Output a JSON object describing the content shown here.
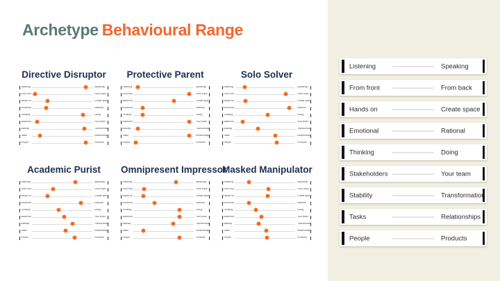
{
  "title": {
    "part1": "Archetype",
    "part2": "Behavioural Range"
  },
  "scales": [
    {
      "left": "Listening",
      "right": "Speaking"
    },
    {
      "left": "From front",
      "right": "From back"
    },
    {
      "left": "Hands on",
      "right": "Create space"
    },
    {
      "left": "Emotional",
      "right": "Rational"
    },
    {
      "left": "Thinking",
      "right": "Doing"
    },
    {
      "left": "Stakeholders",
      "right": "Your team"
    },
    {
      "left": "Stability",
      "right": "Transformation"
    },
    {
      "left": "Tasks",
      "right": "Relationships"
    },
    {
      "left": "People",
      "right": "Products"
    }
  ],
  "chart_data": {
    "type": "scatter",
    "note": "Each archetype chart plots one orange dot per behavioural scale; value = position along the left-right scale, 0 = left pole, 100 = right pole.",
    "categories": [
      "Listening-Speaking",
      "From front-From back",
      "Hands on-Create space",
      "Emotional-Rational",
      "Thinking-Doing",
      "Stakeholders-Your team",
      "Stability-Transformation",
      "Tasks-Relationships",
      "People-Products"
    ],
    "series": [
      {
        "name": "Directive Disruptor",
        "values": [
          89,
          5,
          26,
          23,
          84,
          9,
          87,
          13,
          89
        ]
      },
      {
        "name": "Protective Parent",
        "values": [
          7,
          93,
          67,
          15,
          15,
          93,
          7,
          92,
          4
        ]
      },
      {
        "name": "Solo Solver",
        "values": [
          17,
          84,
          18,
          90,
          55,
          13,
          38,
          67,
          70
        ]
      },
      {
        "name": "Academic Purist",
        "values": [
          72,
          35,
          26,
          81,
          44,
          54,
          67,
          56,
          71
        ]
      },
      {
        "name": "Omnipresent Impressor",
        "values": [
          71,
          18,
          17,
          35,
          76,
          76,
          66,
          17,
          76
        ]
      },
      {
        "name": "Masked Manipulator",
        "values": [
          24,
          56,
          55,
          24,
          35,
          44,
          40,
          52,
          54
        ]
      }
    ],
    "xlim": [
      0,
      100
    ]
  },
  "colors": {
    "dot_orange": "#f2641f",
    "title_orange": "#f2672e",
    "title_gray_teal": "#5e7878",
    "chart_title_navy": "#1d2e4f",
    "panel_cream": "#f1f0e3",
    "bar_black": "#151515"
  }
}
